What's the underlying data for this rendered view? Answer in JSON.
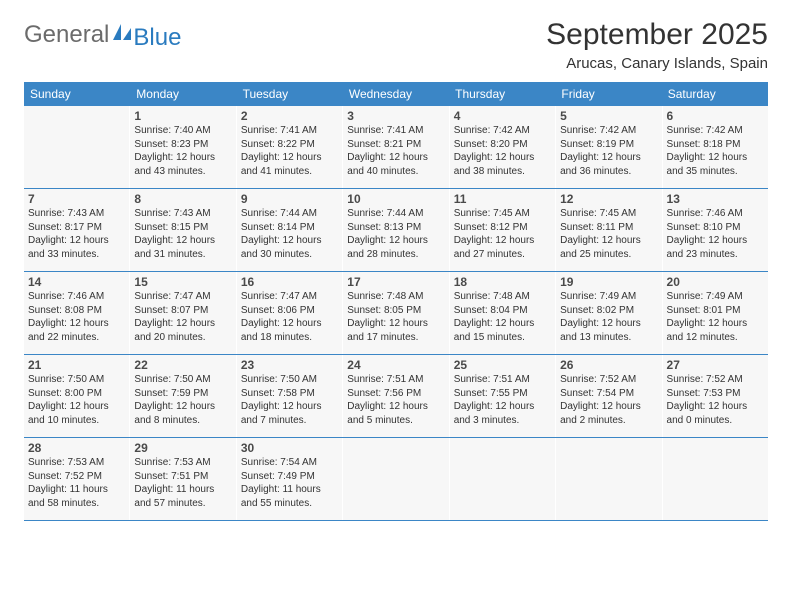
{
  "logo": {
    "general": "General",
    "blue": "Blue"
  },
  "title": "September 2025",
  "location": "Arucas, Canary Islands, Spain",
  "colors": {
    "header_bg": "#3b86c6",
    "header_text": "#ffffff",
    "cell_bg": "#f7f7f7",
    "border": "#3b86c6",
    "title_color": "#333333",
    "logo_gray": "#6b6b6b",
    "logo_blue": "#2a7bbf"
  },
  "day_labels": [
    "Sunday",
    "Monday",
    "Tuesday",
    "Wednesday",
    "Thursday",
    "Friday",
    "Saturday"
  ],
  "label_prefixes": {
    "sunrise": "Sunrise: ",
    "sunset": "Sunset: ",
    "daylight": "Daylight: "
  },
  "weeks": [
    [
      null,
      {
        "n": "1",
        "sr": "7:40 AM",
        "ss": "8:23 PM",
        "dl": "12 hours and 43 minutes."
      },
      {
        "n": "2",
        "sr": "7:41 AM",
        "ss": "8:22 PM",
        "dl": "12 hours and 41 minutes."
      },
      {
        "n": "3",
        "sr": "7:41 AM",
        "ss": "8:21 PM",
        "dl": "12 hours and 40 minutes."
      },
      {
        "n": "4",
        "sr": "7:42 AM",
        "ss": "8:20 PM",
        "dl": "12 hours and 38 minutes."
      },
      {
        "n": "5",
        "sr": "7:42 AM",
        "ss": "8:19 PM",
        "dl": "12 hours and 36 minutes."
      },
      {
        "n": "6",
        "sr": "7:42 AM",
        "ss": "8:18 PM",
        "dl": "12 hours and 35 minutes."
      }
    ],
    [
      {
        "n": "7",
        "sr": "7:43 AM",
        "ss": "8:17 PM",
        "dl": "12 hours and 33 minutes."
      },
      {
        "n": "8",
        "sr": "7:43 AM",
        "ss": "8:15 PM",
        "dl": "12 hours and 31 minutes."
      },
      {
        "n": "9",
        "sr": "7:44 AM",
        "ss": "8:14 PM",
        "dl": "12 hours and 30 minutes."
      },
      {
        "n": "10",
        "sr": "7:44 AM",
        "ss": "8:13 PM",
        "dl": "12 hours and 28 minutes."
      },
      {
        "n": "11",
        "sr": "7:45 AM",
        "ss": "8:12 PM",
        "dl": "12 hours and 27 minutes."
      },
      {
        "n": "12",
        "sr": "7:45 AM",
        "ss": "8:11 PM",
        "dl": "12 hours and 25 minutes."
      },
      {
        "n": "13",
        "sr": "7:46 AM",
        "ss": "8:10 PM",
        "dl": "12 hours and 23 minutes."
      }
    ],
    [
      {
        "n": "14",
        "sr": "7:46 AM",
        "ss": "8:08 PM",
        "dl": "12 hours and 22 minutes."
      },
      {
        "n": "15",
        "sr": "7:47 AM",
        "ss": "8:07 PM",
        "dl": "12 hours and 20 minutes."
      },
      {
        "n": "16",
        "sr": "7:47 AM",
        "ss": "8:06 PM",
        "dl": "12 hours and 18 minutes."
      },
      {
        "n": "17",
        "sr": "7:48 AM",
        "ss": "8:05 PM",
        "dl": "12 hours and 17 minutes."
      },
      {
        "n": "18",
        "sr": "7:48 AM",
        "ss": "8:04 PM",
        "dl": "12 hours and 15 minutes."
      },
      {
        "n": "19",
        "sr": "7:49 AM",
        "ss": "8:02 PM",
        "dl": "12 hours and 13 minutes."
      },
      {
        "n": "20",
        "sr": "7:49 AM",
        "ss": "8:01 PM",
        "dl": "12 hours and 12 minutes."
      }
    ],
    [
      {
        "n": "21",
        "sr": "7:50 AM",
        "ss": "8:00 PM",
        "dl": "12 hours and 10 minutes."
      },
      {
        "n": "22",
        "sr": "7:50 AM",
        "ss": "7:59 PM",
        "dl": "12 hours and 8 minutes."
      },
      {
        "n": "23",
        "sr": "7:50 AM",
        "ss": "7:58 PM",
        "dl": "12 hours and 7 minutes."
      },
      {
        "n": "24",
        "sr": "7:51 AM",
        "ss": "7:56 PM",
        "dl": "12 hours and 5 minutes."
      },
      {
        "n": "25",
        "sr": "7:51 AM",
        "ss": "7:55 PM",
        "dl": "12 hours and 3 minutes."
      },
      {
        "n": "26",
        "sr": "7:52 AM",
        "ss": "7:54 PM",
        "dl": "12 hours and 2 minutes."
      },
      {
        "n": "27",
        "sr": "7:52 AM",
        "ss": "7:53 PM",
        "dl": "12 hours and 0 minutes."
      }
    ],
    [
      {
        "n": "28",
        "sr": "7:53 AM",
        "ss": "7:52 PM",
        "dl": "11 hours and 58 minutes."
      },
      {
        "n": "29",
        "sr": "7:53 AM",
        "ss": "7:51 PM",
        "dl": "11 hours and 57 minutes."
      },
      {
        "n": "30",
        "sr": "7:54 AM",
        "ss": "7:49 PM",
        "dl": "11 hours and 55 minutes."
      },
      null,
      null,
      null,
      null
    ]
  ]
}
